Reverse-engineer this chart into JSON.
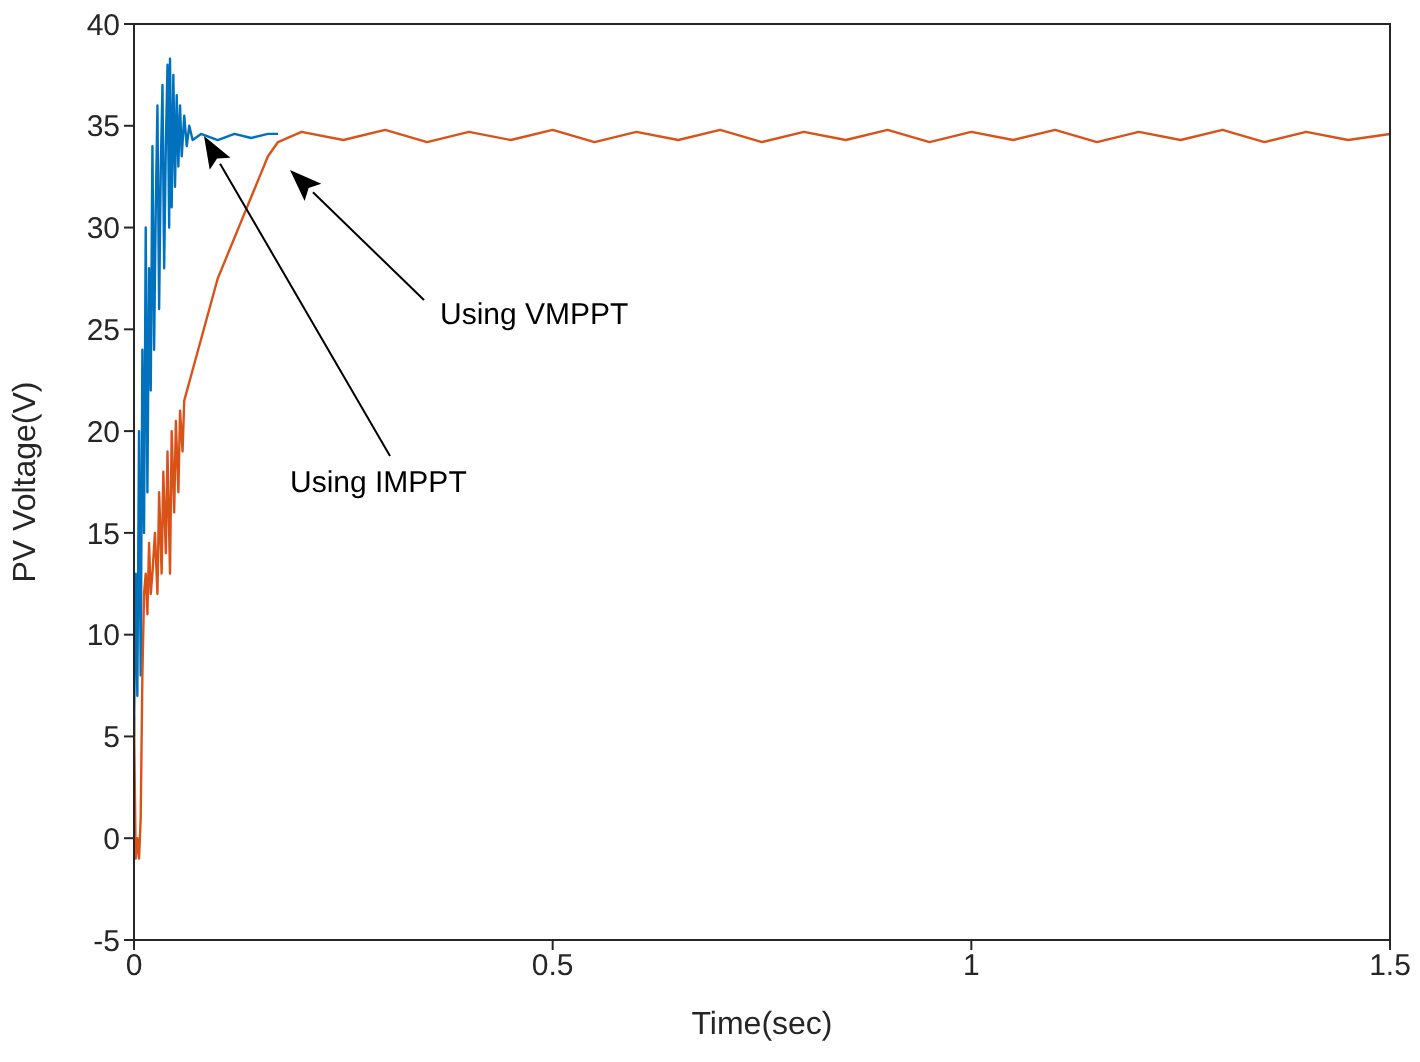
{
  "chart_data": {
    "type": "line",
    "xlabel": "Time(sec)",
    "ylabel": "PV Voltage(V)",
    "xlim": [
      0,
      1.5
    ],
    "xticks": [
      0,
      0.5,
      1,
      1.5
    ],
    "ylim": [
      -5,
      40
    ],
    "yticks": [
      -5,
      0,
      5,
      10,
      15,
      20,
      25,
      30,
      35,
      40
    ],
    "grid": false,
    "marker": "none",
    "line_style": "solid",
    "series": [
      {
        "color": "#0072bd",
        "x": [
          0,
          0.002,
          0.004,
          0.006,
          0.008,
          0.01,
          0.012,
          0.014,
          0.016,
          0.018,
          0.02,
          0.022,
          0.024,
          0.026,
          0.028,
          0.03,
          0.032,
          0.034,
          0.036,
          0.038,
          0.04,
          0.042,
          0.043,
          0.045,
          0.047,
          0.049,
          0.051,
          0.053,
          0.055,
          0.057,
          0.06,
          0.063,
          0.066,
          0.07,
          0.08,
          0.1,
          0.12,
          0.14,
          0.16,
          0.172
        ],
        "values": [
          5,
          13,
          7,
          20,
          8,
          24,
          15,
          30,
          17,
          28,
          22,
          34,
          24,
          31,
          36,
          26,
          33,
          37,
          28,
          34,
          38,
          30,
          38.3,
          31,
          37.5,
          32,
          36.5,
          33,
          36,
          33.5,
          35.5,
          34,
          35,
          34.3,
          34.6,
          34.3,
          34.6,
          34.4,
          34.6,
          34.6
        ]
      },
      {
        "color": "#d95319",
        "x": [
          0,
          0.002,
          0.004,
          0.006,
          0.008,
          0.01,
          0.012,
          0.014,
          0.016,
          0.018,
          0.02,
          0.022,
          0.025,
          0.028,
          0.03,
          0.033,
          0.035,
          0.038,
          0.04,
          0.043,
          0.045,
          0.048,
          0.05,
          0.053,
          0.055,
          0.058,
          0.06,
          0.07,
          0.08,
          0.09,
          0.1,
          0.11,
          0.12,
          0.13,
          0.14,
          0.15,
          0.16,
          0.172,
          0.2,
          0.25,
          0.3,
          0.35,
          0.4,
          0.45,
          0.5,
          0.55,
          0.6,
          0.65,
          0.7,
          0.75,
          0.8,
          0.85,
          0.9,
          0.95,
          1,
          1.05,
          1.1,
          1.15,
          1.2,
          1.25,
          1.3,
          1.35,
          1.4,
          1.45,
          1.5
        ],
        "values": [
          6,
          -1,
          0,
          -1,
          1,
          8,
          12,
          13,
          11,
          14.5,
          12,
          13,
          15,
          12,
          17,
          13,
          18,
          14,
          19,
          13,
          20,
          16,
          20.5,
          17,
          21,
          19,
          21.5,
          23,
          24.5,
          26,
          27.5,
          28.5,
          29.5,
          30.5,
          31.5,
          32.5,
          33.5,
          34.2,
          34.7,
          34.3,
          34.8,
          34.2,
          34.7,
          34.3,
          34.8,
          34.2,
          34.7,
          34.3,
          34.8,
          34.2,
          34.7,
          34.3,
          34.8,
          34.2,
          34.7,
          34.3,
          34.8,
          34.2,
          34.7,
          34.3,
          34.8,
          34.2,
          34.7,
          34.3,
          34.6
        ]
      }
    ],
    "annotations": [
      "Using VMPPT",
      "Using IMPPT"
    ]
  }
}
